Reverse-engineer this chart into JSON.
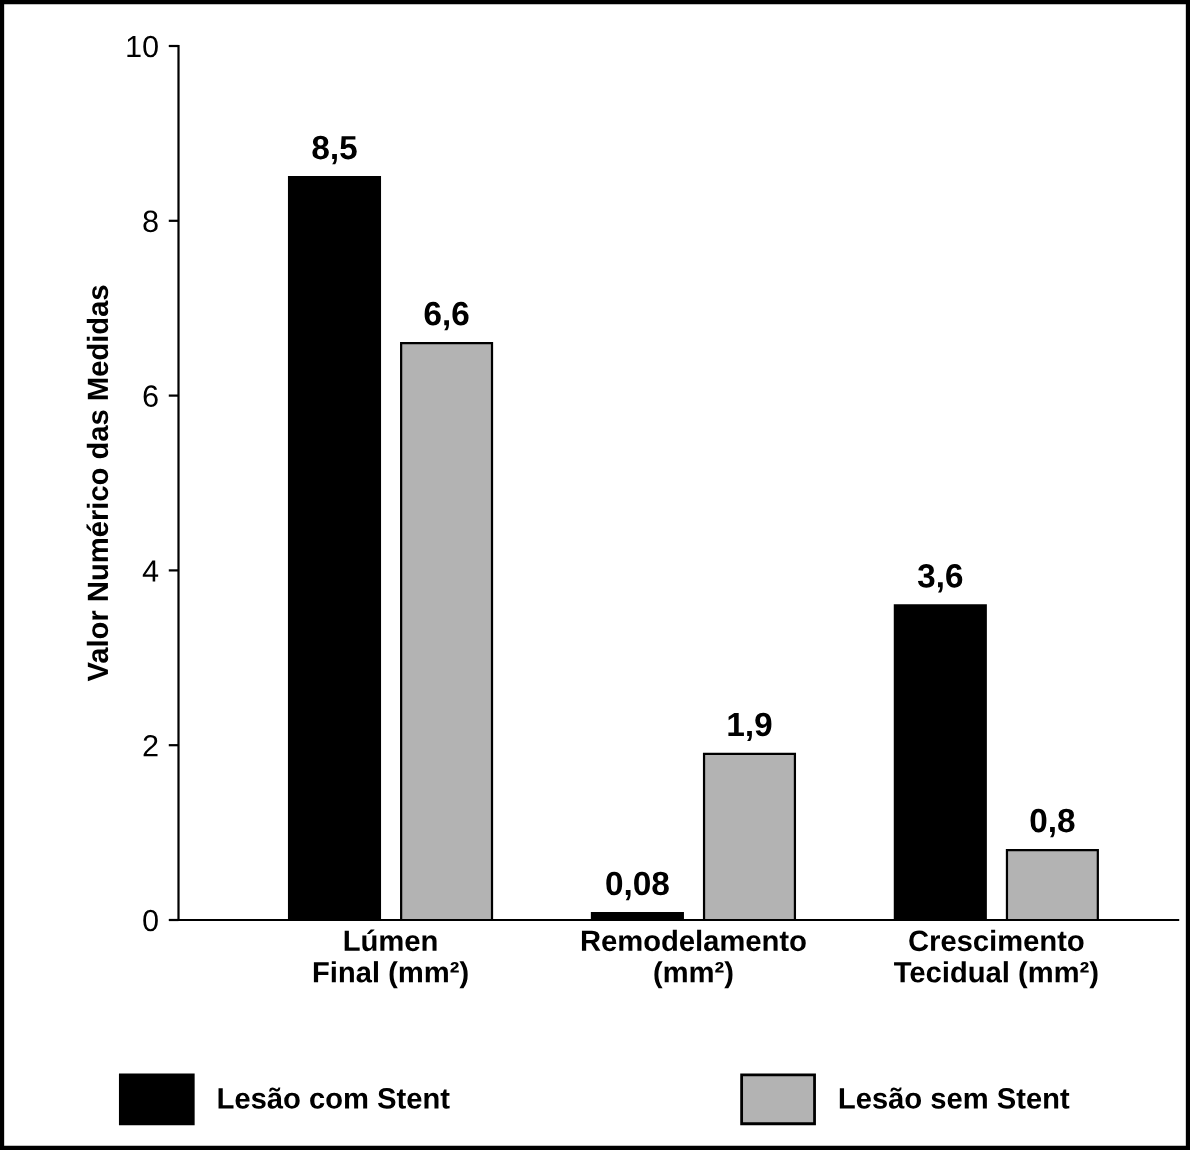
{
  "chart_data": {
    "type": "bar",
    "ylabel": "Valor Numérico das Medidas",
    "categories": [
      "Lúmen\nFinal (mm²)",
      "Remodelamento\n(mm²)",
      "Crescimento\nTecidual (mm²)"
    ],
    "series": [
      {
        "name": "Lesão com Stent",
        "color": "#000000",
        "values": [
          8.5,
          0.08,
          3.6
        ],
        "value_labels": [
          "8,5",
          "0,08",
          "3,6"
        ]
      },
      {
        "name": "Lesão sem Stent",
        "color": "#b3b3b3",
        "values": [
          6.6,
          1.9,
          0.8
        ],
        "value_labels": [
          "6,6",
          "1,9",
          "0,8"
        ]
      }
    ],
    "ylim": [
      0,
      10
    ],
    "yticks": [
      0,
      2,
      4,
      6,
      8,
      10
    ],
    "grid": false,
    "legend": "bottom"
  }
}
